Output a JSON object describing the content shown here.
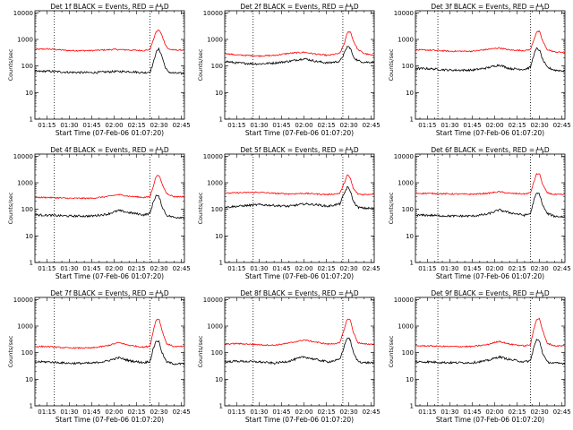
{
  "colors": {
    "events": "#000000",
    "lld": "#ff0000",
    "axis": "#000000",
    "background": "#ffffff"
  },
  "chart_data": [
    {
      "type": "line",
      "title": "Det 1f BLACK = Events, RED = LLD",
      "xlabel": "Start Time (07-Feb-06 01:07:20)",
      "ylabel": "Counts/sec",
      "x_ticks": [
        "01:15",
        "01:30",
        "01:45",
        "02:00",
        "02:15",
        "02:30",
        "02:45"
      ],
      "y_ticks": [
        "1",
        "10",
        "100",
        "1000",
        "10000"
      ],
      "xlim": [
        "01:07",
        "02:47"
      ],
      "ylim": [
        1,
        12000
      ],
      "y_scale": "log",
      "vlines": [
        "01:20",
        "02:24"
      ],
      "series": [
        {
          "color": "#ff0000",
          "x": [
            "01:07",
            "01:15",
            "01:30",
            "01:45",
            "02:00",
            "02:10",
            "02:20",
            "02:24",
            "02:26",
            "02:28",
            "02:30",
            "02:32",
            "02:34",
            "02:36",
            "02:40",
            "02:47"
          ],
          "y": [
            420,
            440,
            380,
            380,
            420,
            400,
            380,
            420,
            900,
            1900,
            2300,
            1400,
            700,
            440,
            400,
            400
          ]
        },
        {
          "color": "#000000",
          "x": [
            "01:07",
            "01:15",
            "01:30",
            "01:45",
            "02:00",
            "02:10",
            "02:20",
            "02:24",
            "02:26",
            "02:28",
            "02:30",
            "02:32",
            "02:34",
            "02:36",
            "02:40",
            "02:47"
          ],
          "y": [
            62,
            64,
            58,
            56,
            62,
            62,
            56,
            60,
            120,
            330,
            440,
            230,
            95,
            60,
            54,
            52
          ]
        }
      ]
    },
    {
      "type": "line",
      "title": "Det 2f BLACK = Events, RED = LLD",
      "xlabel": "Start Time (07-Feb-06 01:07:20)",
      "ylabel": "Counts/sec",
      "x_ticks": [
        "01:15",
        "01:30",
        "01:45",
        "02:00",
        "02:15",
        "02:30",
        "02:45"
      ],
      "y_ticks": [
        "1",
        "10",
        "100",
        "1000",
        "10000"
      ],
      "xlim": [
        "01:07",
        "02:47"
      ],
      "ylim": [
        1,
        12000
      ],
      "y_scale": "log",
      "vlines": [
        "01:26",
        "02:26"
      ],
      "series": [
        {
          "color": "#ff0000",
          "x": [
            "01:07",
            "01:15",
            "01:30",
            "01:40",
            "01:50",
            "02:00",
            "02:08",
            "02:16",
            "02:24",
            "02:27",
            "02:29",
            "02:31",
            "02:33",
            "02:36",
            "02:40",
            "02:47"
          ],
          "y": [
            300,
            260,
            240,
            250,
            300,
            330,
            280,
            250,
            300,
            700,
            1800,
            2000,
            900,
            420,
            300,
            240
          ]
        },
        {
          "color": "#000000",
          "x": [
            "01:07",
            "01:15",
            "01:30",
            "01:40",
            "01:50",
            "02:00",
            "02:08",
            "02:16",
            "02:24",
            "02:27",
            "02:29",
            "02:31",
            "02:33",
            "02:36",
            "02:40",
            "02:47"
          ],
          "y": [
            150,
            130,
            120,
            130,
            150,
            190,
            150,
            130,
            150,
            300,
            550,
            480,
            220,
            160,
            140,
            140
          ]
        }
      ]
    },
    {
      "type": "line",
      "title": "Det 3f BLACK = Events, RED = LLD",
      "xlabel": "Start Time (07-Feb-06 01:07:20)",
      "ylabel": "Counts/sec",
      "x_ticks": [
        "01:15",
        "01:30",
        "01:45",
        "02:00",
        "02:15",
        "02:30",
        "02:45"
      ],
      "y_ticks": [
        "1",
        "10",
        "100",
        "1000",
        "10000"
      ],
      "xlim": [
        "01:07",
        "02:47"
      ],
      "ylim": [
        1,
        12000
      ],
      "y_scale": "log",
      "vlines": [
        "01:22",
        "02:24"
      ],
      "series": [
        {
          "color": "#ff0000",
          "x": [
            "01:07",
            "01:15",
            "01:30",
            "01:45",
            "01:55",
            "02:03",
            "02:10",
            "02:20",
            "02:24",
            "02:26",
            "02:28",
            "02:30",
            "02:32",
            "02:35",
            "02:40",
            "02:47"
          ],
          "y": [
            400,
            400,
            360,
            360,
            420,
            480,
            400,
            380,
            420,
            900,
            1900,
            2000,
            900,
            420,
            340,
            320
          ]
        },
        {
          "color": "#000000",
          "x": [
            "01:07",
            "01:15",
            "01:30",
            "01:45",
            "01:55",
            "02:03",
            "02:10",
            "02:20",
            "02:24",
            "02:26",
            "02:28",
            "02:30",
            "02:32",
            "02:35",
            "02:40",
            "02:47"
          ],
          "y": [
            80,
            80,
            70,
            70,
            85,
            110,
            80,
            75,
            90,
            250,
            450,
            400,
            180,
            90,
            70,
            65
          ]
        }
      ]
    },
    {
      "type": "line",
      "title": "Det 4f BLACK = Events, RED = LLD",
      "xlabel": "Start Time (07-Feb-06 01:07:20)",
      "ylabel": "Counts/sec",
      "x_ticks": [
        "01:15",
        "01:30",
        "01:45",
        "02:00",
        "02:15",
        "02:30",
        "02:45"
      ],
      "y_ticks": [
        "1",
        "10",
        "100",
        "1000",
        "10000"
      ],
      "xlim": [
        "01:07",
        "02:47"
      ],
      "ylim": [
        1,
        12000
      ],
      "y_scale": "log",
      "vlines": [
        "01:20",
        "02:24"
      ],
      "series": [
        {
          "color": "#ff0000",
          "x": [
            "01:07",
            "01:15",
            "01:30",
            "01:45",
            "01:55",
            "02:03",
            "02:10",
            "02:20",
            "02:24",
            "02:26",
            "02:28",
            "02:30",
            "02:32",
            "02:35",
            "02:40",
            "02:47"
          ],
          "y": [
            280,
            280,
            260,
            260,
            300,
            360,
            310,
            280,
            300,
            700,
            1700,
            2000,
            900,
            400,
            300,
            300
          ]
        },
        {
          "color": "#000000",
          "x": [
            "01:07",
            "01:15",
            "01:30",
            "01:45",
            "01:55",
            "02:03",
            "02:10",
            "02:20",
            "02:24",
            "02:26",
            "02:28",
            "02:30",
            "02:32",
            "02:35",
            "02:40",
            "02:47"
          ],
          "y": [
            62,
            60,
            56,
            56,
            65,
            90,
            75,
            62,
            70,
            180,
            330,
            300,
            130,
            60,
            50,
            50
          ]
        }
      ]
    },
    {
      "type": "line",
      "title": "Det 5f BLACK = Events, RED = LLD",
      "xlabel": "Start Time (07-Feb-06 01:07:20)",
      "ylabel": "Counts/sec",
      "x_ticks": [
        "01:15",
        "01:30",
        "01:45",
        "02:00",
        "02:15",
        "02:30",
        "02:45"
      ],
      "y_ticks": [
        "1",
        "10",
        "100",
        "1000",
        "10000"
      ],
      "xlim": [
        "01:07",
        "02:47"
      ],
      "ylim": [
        1,
        12000
      ],
      "y_scale": "log",
      "vlines": [
        "01:26",
        "02:26"
      ],
      "series": [
        {
          "color": "#ff0000",
          "x": [
            "01:07",
            "01:15",
            "01:30",
            "01:40",
            "01:50",
            "02:00",
            "02:08",
            "02:16",
            "02:24",
            "02:27",
            "02:29",
            "02:31",
            "02:33",
            "02:36",
            "02:40",
            "02:47"
          ],
          "y": [
            400,
            420,
            440,
            400,
            380,
            400,
            380,
            360,
            400,
            1000,
            2000,
            1500,
            600,
            380,
            360,
            380
          ]
        },
        {
          "color": "#000000",
          "x": [
            "01:07",
            "01:15",
            "01:30",
            "01:40",
            "01:50",
            "02:00",
            "02:08",
            "02:16",
            "02:24",
            "02:27",
            "02:29",
            "02:31",
            "02:33",
            "02:36",
            "02:40",
            "02:47"
          ],
          "y": [
            120,
            130,
            150,
            140,
            130,
            160,
            150,
            130,
            160,
            400,
            700,
            500,
            200,
            120,
            110,
            110
          ]
        }
      ]
    },
    {
      "type": "line",
      "title": "Det 6f BLACK = Events, RED = LLD",
      "xlabel": "Start Time (07-Feb-06 01:07:20)",
      "ylabel": "Counts/sec",
      "x_ticks": [
        "01:15",
        "01:30",
        "01:45",
        "02:00",
        "02:15",
        "02:30",
        "02:45"
      ],
      "y_ticks": [
        "1",
        "10",
        "100",
        "1000",
        "10000"
      ],
      "xlim": [
        "01:07",
        "02:47"
      ],
      "ylim": [
        1,
        12000
      ],
      "y_scale": "log",
      "vlines": [
        "01:22",
        "02:24"
      ],
      "series": [
        {
          "color": "#ff0000",
          "x": [
            "01:07",
            "01:15",
            "01:30",
            "01:45",
            "01:55",
            "02:03",
            "02:10",
            "02:20",
            "02:24",
            "02:26",
            "02:28",
            "02:30",
            "02:32",
            "02:35",
            "02:40",
            "02:47"
          ],
          "y": [
            400,
            400,
            380,
            370,
            400,
            460,
            400,
            380,
            420,
            1000,
            2100,
            2200,
            900,
            420,
            360,
            360
          ]
        },
        {
          "color": "#000000",
          "x": [
            "01:07",
            "01:15",
            "01:30",
            "01:45",
            "01:55",
            "02:03",
            "02:10",
            "02:20",
            "02:24",
            "02:26",
            "02:28",
            "02:30",
            "02:32",
            "02:35",
            "02:40",
            "02:47"
          ],
          "y": [
            60,
            60,
            56,
            56,
            65,
            95,
            75,
            60,
            70,
            200,
            400,
            380,
            150,
            70,
            55,
            52
          ]
        }
      ]
    },
    {
      "type": "line",
      "title": "Det 7f BLACK = Events, RED = LLD",
      "xlabel": "Start Time (07-Feb-06 01:07:20)",
      "ylabel": "Counts/sec",
      "x_ticks": [
        "01:15",
        "01:30",
        "01:45",
        "02:00",
        "02:15",
        "02:30",
        "02:45"
      ],
      "y_ticks": [
        "1",
        "10",
        "100",
        "1000",
        "10000"
      ],
      "xlim": [
        "01:07",
        "02:47"
      ],
      "ylim": [
        1,
        12000
      ],
      "y_scale": "log",
      "vlines": [
        "01:20",
        "02:24"
      ],
      "series": [
        {
          "color": "#ff0000",
          "x": [
            "01:07",
            "01:15",
            "01:30",
            "01:45",
            "01:55",
            "02:03",
            "02:10",
            "02:20",
            "02:24",
            "02:26",
            "02:28",
            "02:30",
            "02:32",
            "02:35",
            "02:40",
            "02:47"
          ],
          "y": [
            170,
            170,
            150,
            150,
            180,
            240,
            190,
            160,
            180,
            600,
            1700,
            1900,
            700,
            220,
            170,
            170
          ]
        },
        {
          "color": "#000000",
          "x": [
            "01:07",
            "01:15",
            "01:30",
            "01:45",
            "01:55",
            "02:03",
            "02:10",
            "02:20",
            "02:24",
            "02:26",
            "02:28",
            "02:30",
            "02:32",
            "02:35",
            "02:40",
            "02:47"
          ],
          "y": [
            45,
            45,
            40,
            40,
            48,
            65,
            50,
            42,
            48,
            130,
            280,
            260,
            100,
            45,
            38,
            38
          ]
        }
      ]
    },
    {
      "type": "line",
      "title": "Det 8f BLACK = Events, RED = LLD",
      "xlabel": "Start Time (07-Feb-06 01:07:20)",
      "ylabel": "Counts/sec",
      "x_ticks": [
        "01:15",
        "01:30",
        "01:45",
        "02:00",
        "02:15",
        "02:30",
        "02:45"
      ],
      "y_ticks": [
        "1",
        "10",
        "100",
        "1000",
        "10000"
      ],
      "xlim": [
        "01:07",
        "02:47"
      ],
      "ylim": [
        1,
        12000
      ],
      "y_scale": "log",
      "vlines": [
        "01:26",
        "02:26"
      ],
      "series": [
        {
          "color": "#ff0000",
          "x": [
            "01:07",
            "01:15",
            "01:30",
            "01:40",
            "01:50",
            "02:00",
            "02:08",
            "02:16",
            "02:24",
            "02:27",
            "02:29",
            "02:31",
            "02:33",
            "02:36",
            "02:40",
            "02:47"
          ],
          "y": [
            210,
            220,
            200,
            190,
            230,
            300,
            250,
            210,
            230,
            800,
            1900,
            1700,
            600,
            240,
            210,
            210
          ]
        },
        {
          "color": "#000000",
          "x": [
            "01:07",
            "01:15",
            "01:30",
            "01:40",
            "01:50",
            "02:00",
            "02:08",
            "02:16",
            "02:24",
            "02:27",
            "02:29",
            "02:31",
            "02:33",
            "02:36",
            "02:40",
            "02:47"
          ],
          "y": [
            45,
            48,
            45,
            40,
            48,
            70,
            55,
            45,
            55,
            180,
            380,
            300,
            100,
            48,
            42,
            42
          ]
        }
      ]
    },
    {
      "type": "line",
      "title": "Det 9f BLACK = Events, RED = LLD",
      "xlabel": "Start Time (07-Feb-06 01:07:20)",
      "ylabel": "Counts/sec",
      "x_ticks": [
        "01:15",
        "01:30",
        "01:45",
        "02:00",
        "02:15",
        "02:30",
        "02:45"
      ],
      "y_ticks": [
        "1",
        "10",
        "100",
        "1000",
        "10000"
      ],
      "xlim": [
        "01:07",
        "02:47"
      ],
      "ylim": [
        1,
        12000
      ],
      "y_scale": "log",
      "vlines": [
        "01:22",
        "02:24"
      ],
      "series": [
        {
          "color": "#ff0000",
          "x": [
            "01:07",
            "01:15",
            "01:30",
            "01:45",
            "01:55",
            "02:03",
            "02:10",
            "02:20",
            "02:24",
            "02:26",
            "02:28",
            "02:30",
            "02:32",
            "02:35",
            "02:40",
            "02:47"
          ],
          "y": [
            180,
            180,
            170,
            170,
            200,
            270,
            210,
            180,
            200,
            700,
            1800,
            1900,
            700,
            230,
            180,
            180
          ]
        },
        {
          "color": "#000000",
          "x": [
            "01:07",
            "01:15",
            "01:30",
            "01:45",
            "01:55",
            "02:03",
            "02:10",
            "02:20",
            "02:24",
            "02:26",
            "02:28",
            "02:30",
            "02:32",
            "02:35",
            "02:40",
            "02:47"
          ],
          "y": [
            45,
            45,
            42,
            42,
            50,
            70,
            55,
            45,
            50,
            150,
            300,
            280,
            100,
            45,
            40,
            40
          ]
        }
      ]
    }
  ]
}
